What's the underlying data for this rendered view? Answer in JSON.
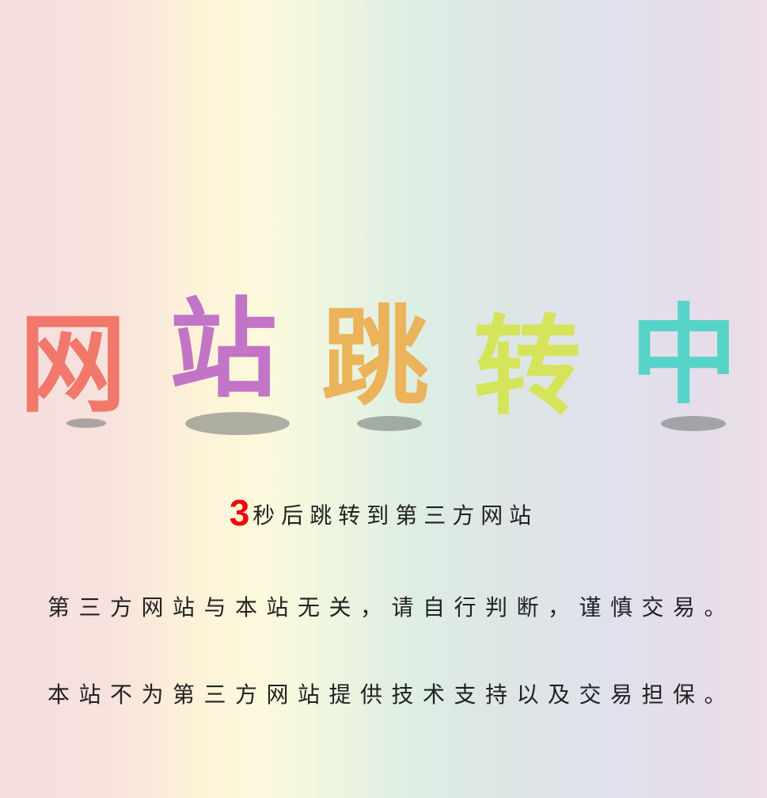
{
  "title": {
    "chars": [
      {
        "text": "网",
        "color": "#f2786c"
      },
      {
        "text": "站",
        "color": "#c274c6"
      },
      {
        "text": "跳",
        "color": "#ebb35a"
      },
      {
        "text": "转",
        "color": "#d6e45b"
      },
      {
        "text": "中",
        "color": "#56d4c8"
      }
    ]
  },
  "countdown": {
    "seconds": "3",
    "text": "秒后跳转到第三方网站",
    "number_color": "#ee0a0a"
  },
  "notices": {
    "line1": "第三方网站与本站无关，请自行判断，谨慎交易。",
    "line2": "本站不为第三方网站提供技术支持以及交易担保。"
  }
}
